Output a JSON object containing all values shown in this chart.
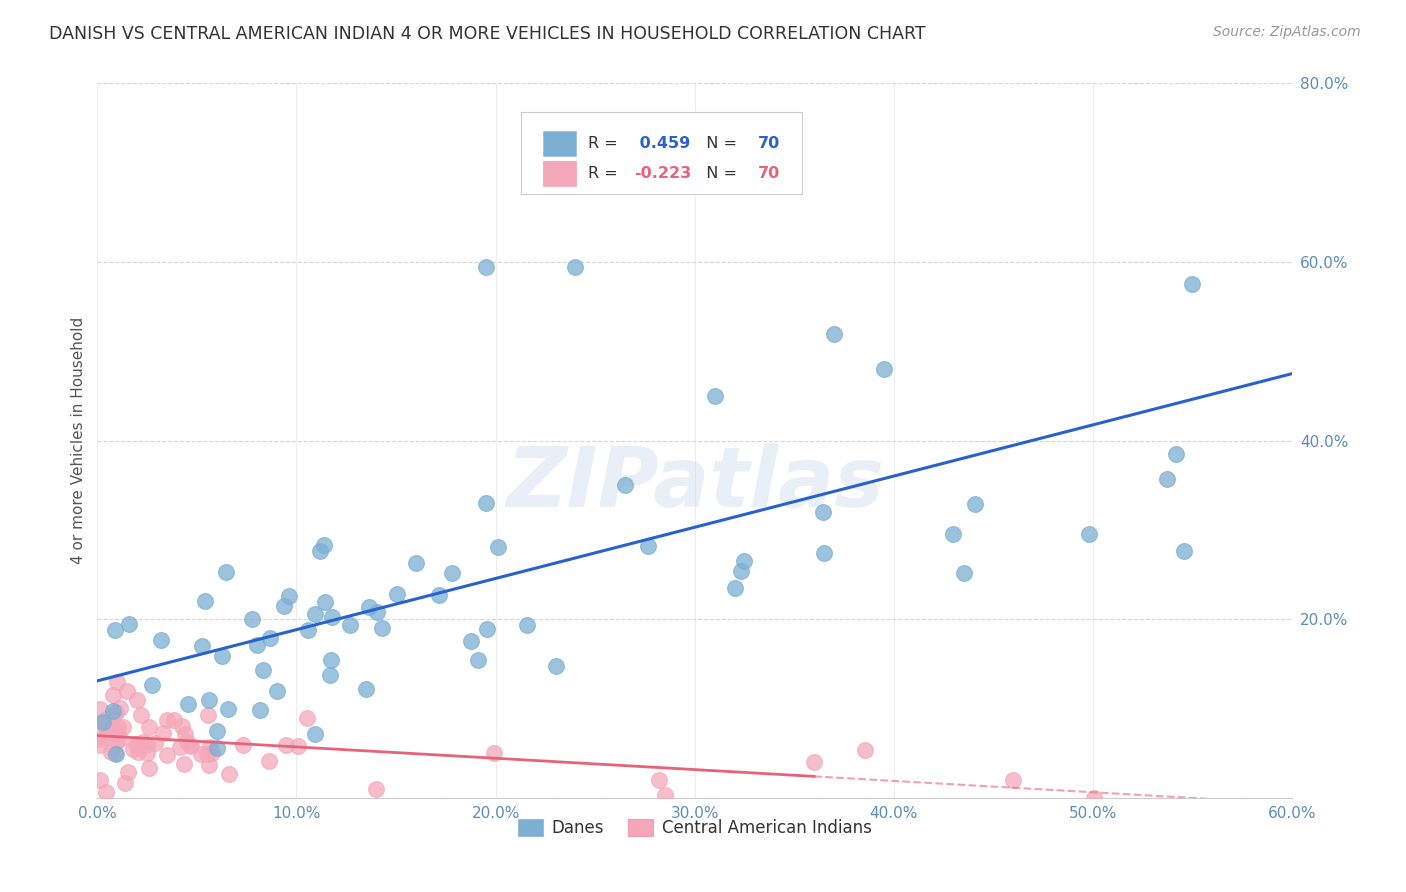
{
  "title": "DANISH VS CENTRAL AMERICAN INDIAN 4 OR MORE VEHICLES IN HOUSEHOLD CORRELATION CHART",
  "source": "Source: ZipAtlas.com",
  "ylabel": "4 or more Vehicles in Household",
  "xlim": [
    0.0,
    0.6
  ],
  "ylim": [
    0.0,
    0.8
  ],
  "blue_R": 0.459,
  "blue_N": 70,
  "pink_R": -0.223,
  "pink_N": 70,
  "blue_color": "#7BAFD4",
  "pink_color": "#F4A7B9",
  "blue_line_color": "#2962CC",
  "pink_line_color": "#E8637A",
  "legend1_label": "Danes",
  "legend2_label": "Central American Indians",
  "watermark": "ZIPatlas",
  "background_color": "#FFFFFF",
  "grid_color": "#CCCCCC",
  "title_color": "#333333",
  "source_color": "#999999",
  "tick_color": "#5B8DB8",
  "axis_label_color": "#555555"
}
